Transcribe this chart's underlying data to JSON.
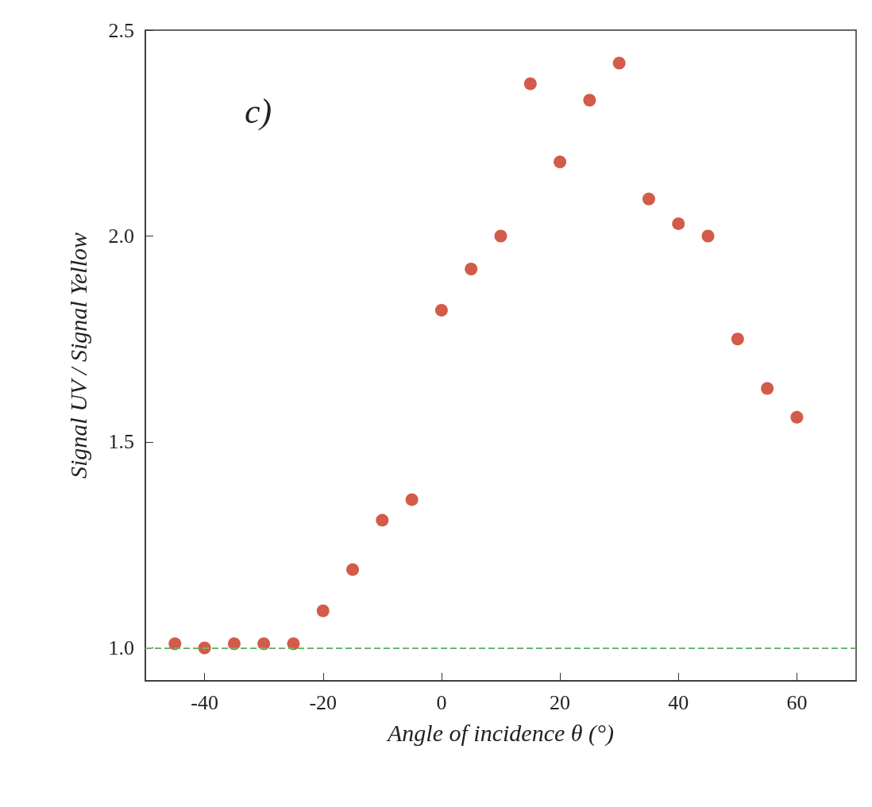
{
  "chart_data": {
    "type": "scatter",
    "xlabel": "Angle of incidence θ (°)",
    "ylabel": "Signal UV / Signal Yellow",
    "x": [
      -45,
      -40,
      -35,
      -30,
      -25,
      -20,
      -15,
      -10,
      -5,
      0,
      5,
      10,
      15,
      20,
      25,
      30,
      35,
      40,
      45,
      50,
      55,
      60
    ],
    "series": [
      {
        "color": "#c8321c",
        "values": [
          1.01,
          1.0,
          1.01,
          1.01,
          1.01,
          1.09,
          1.19,
          1.31,
          1.36,
          1.82,
          1.92,
          2.0,
          2.37,
          2.18,
          2.33,
          2.42,
          2.09,
          2.03,
          2.0,
          1.75,
          1.63,
          1.56
        ]
      }
    ],
    "xlim": [
      -50,
      70
    ],
    "xticks": [
      -40,
      -20,
      0,
      20,
      40,
      60
    ],
    "ylim": [
      0.92,
      2.5
    ],
    "yticks": [
      {
        "value": 1,
        "label": "1.0"
      },
      {
        "value": 1.5,
        "label": "1.5"
      },
      {
        "value": 2,
        "label": "2.0"
      },
      {
        "value": 2.5,
        "label": "2.5"
      }
    ],
    "ref_lines": [
      {
        "axis": "y",
        "value": 1,
        "color": "#6ab86a",
        "line_style": "dashed"
      }
    ],
    "annotations": [
      "c)"
    ],
    "marker": "circle",
    "grid": false
  }
}
